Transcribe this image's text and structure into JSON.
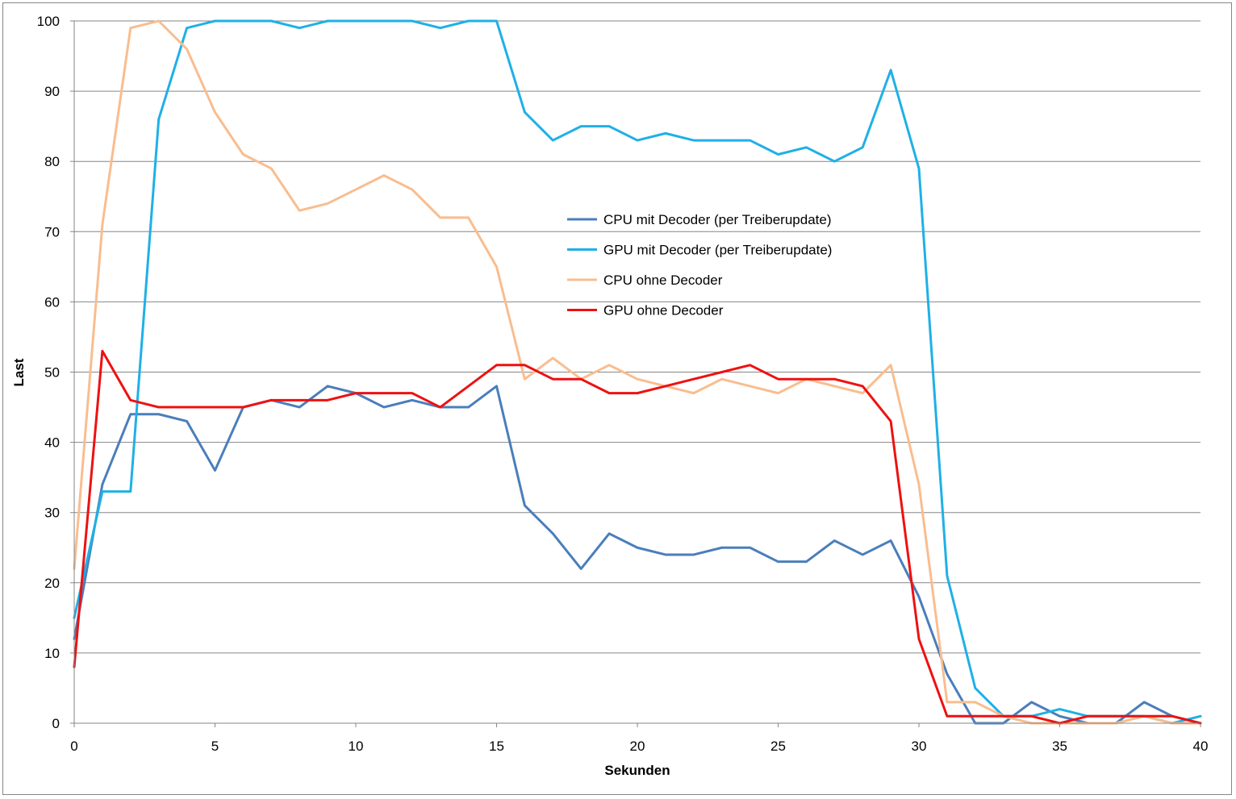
{
  "chart_data": {
    "type": "line",
    "title": "",
    "xlabel": "Sekunden",
    "ylabel": "Last",
    "xlim": [
      0,
      40
    ],
    "ylim": [
      0,
      100
    ],
    "xticks": [
      0,
      5,
      10,
      15,
      20,
      25,
      30,
      35,
      40
    ],
    "yticks": [
      0,
      10,
      20,
      30,
      40,
      50,
      60,
      70,
      80,
      90,
      100
    ],
    "grid": "horizontal",
    "legend_position": "center",
    "x": [
      0,
      1,
      2,
      3,
      4,
      5,
      6,
      7,
      8,
      9,
      10,
      11,
      12,
      13,
      14,
      15,
      16,
      17,
      18,
      19,
      20,
      21,
      22,
      23,
      24,
      25,
      26,
      27,
      28,
      29,
      30,
      31,
      32,
      33,
      34,
      35,
      36,
      37,
      38,
      39,
      40
    ],
    "series": [
      {
        "name": "CPU mit Decoder (per Treiberupdate)",
        "color": "#4a7ebb",
        "values": [
          12,
          34,
          44,
          44,
          43,
          36,
          45,
          46,
          45,
          48,
          47,
          45,
          46,
          45,
          45,
          48,
          31,
          27,
          22,
          27,
          25,
          24,
          24,
          25,
          25,
          23,
          23,
          26,
          24,
          26,
          18,
          7,
          0,
          0,
          3,
          1,
          0,
          0,
          3,
          1,
          0
        ]
      },
      {
        "name": "GPU mit Decoder (per Treiberupdate)",
        "color": "#1fb0e6",
        "values": [
          15,
          33,
          33,
          86,
          99,
          100,
          100,
          100,
          99,
          100,
          100,
          100,
          100,
          99,
          100,
          100,
          87,
          83,
          85,
          85,
          83,
          84,
          83,
          83,
          83,
          81,
          82,
          80,
          82,
          93,
          79,
          21,
          5,
          1,
          1,
          2,
          1,
          1,
          1,
          0,
          1
        ]
      },
      {
        "name": "CPU ohne Decoder",
        "color": "#f9bd8f",
        "values": [
          22,
          71,
          99,
          100,
          96,
          87,
          81,
          79,
          73,
          74,
          76,
          78,
          76,
          72,
          72,
          65,
          49,
          52,
          49,
          51,
          49,
          48,
          47,
          49,
          48,
          47,
          49,
          48,
          47,
          51,
          34,
          3,
          3,
          1,
          0,
          0,
          0,
          0,
          1,
          0,
          0
        ]
      },
      {
        "name": "GPU ohne Decoder",
        "color": "#ee1111",
        "values": [
          8,
          53,
          46,
          45,
          45,
          45,
          45,
          46,
          46,
          46,
          47,
          47,
          47,
          45,
          48,
          51,
          51,
          49,
          49,
          47,
          47,
          48,
          49,
          50,
          51,
          49,
          49,
          49,
          48,
          43,
          12,
          1,
          1,
          1,
          1,
          0,
          1,
          1,
          1,
          1,
          0
        ]
      }
    ]
  }
}
